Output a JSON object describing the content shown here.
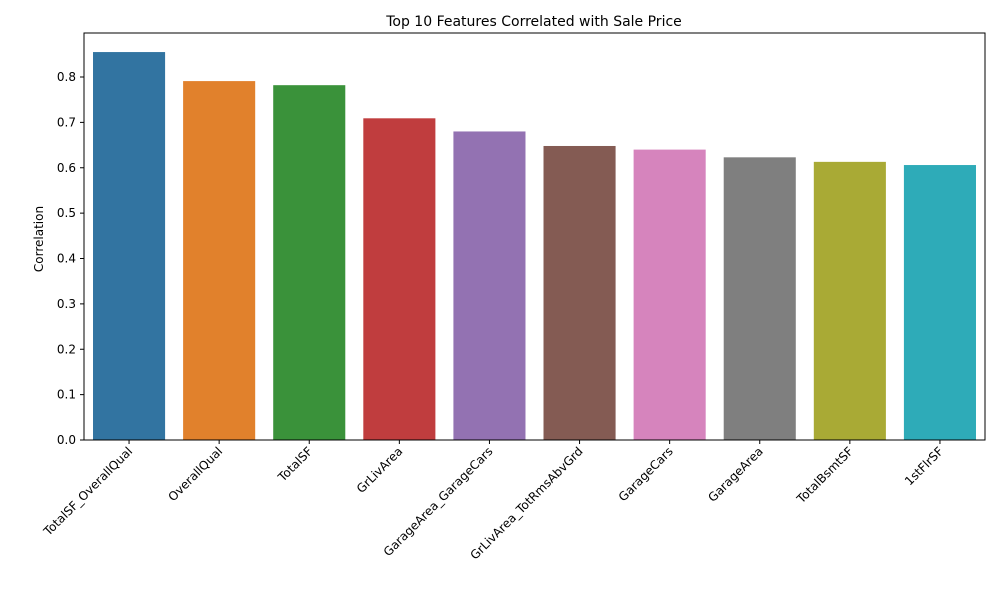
{
  "chart_data": {
    "type": "bar",
    "title": "Top 10 Features Correlated with Sale Price",
    "xlabel": "",
    "ylabel": "Correlation",
    "ylim": [
      0,
      0.897
    ],
    "yticks": [
      "0.0",
      "0.1",
      "0.2",
      "0.3",
      "0.4",
      "0.5",
      "0.6",
      "0.7",
      "0.8"
    ],
    "grid": false,
    "legend": "none",
    "categories": [
      "TotalSF_OverallQual",
      "OverallQual",
      "TotalSF",
      "GrLivArea",
      "GarageArea_GarageCars",
      "GrLivArea_TotRmsAbvGrd",
      "GarageCars",
      "GarageArea",
      "TotalBsmtSF",
      "1stFlrSF"
    ],
    "values": [
      0.855,
      0.791,
      0.782,
      0.709,
      0.68,
      0.648,
      0.64,
      0.623,
      0.613,
      0.606
    ],
    "colors": [
      "#3274a1",
      "#e1812c",
      "#3a923a",
      "#c03d3e",
      "#9372b2",
      "#845b53",
      "#d684bd",
      "#7f7f7f",
      "#a9aa35",
      "#2eabb8"
    ]
  }
}
